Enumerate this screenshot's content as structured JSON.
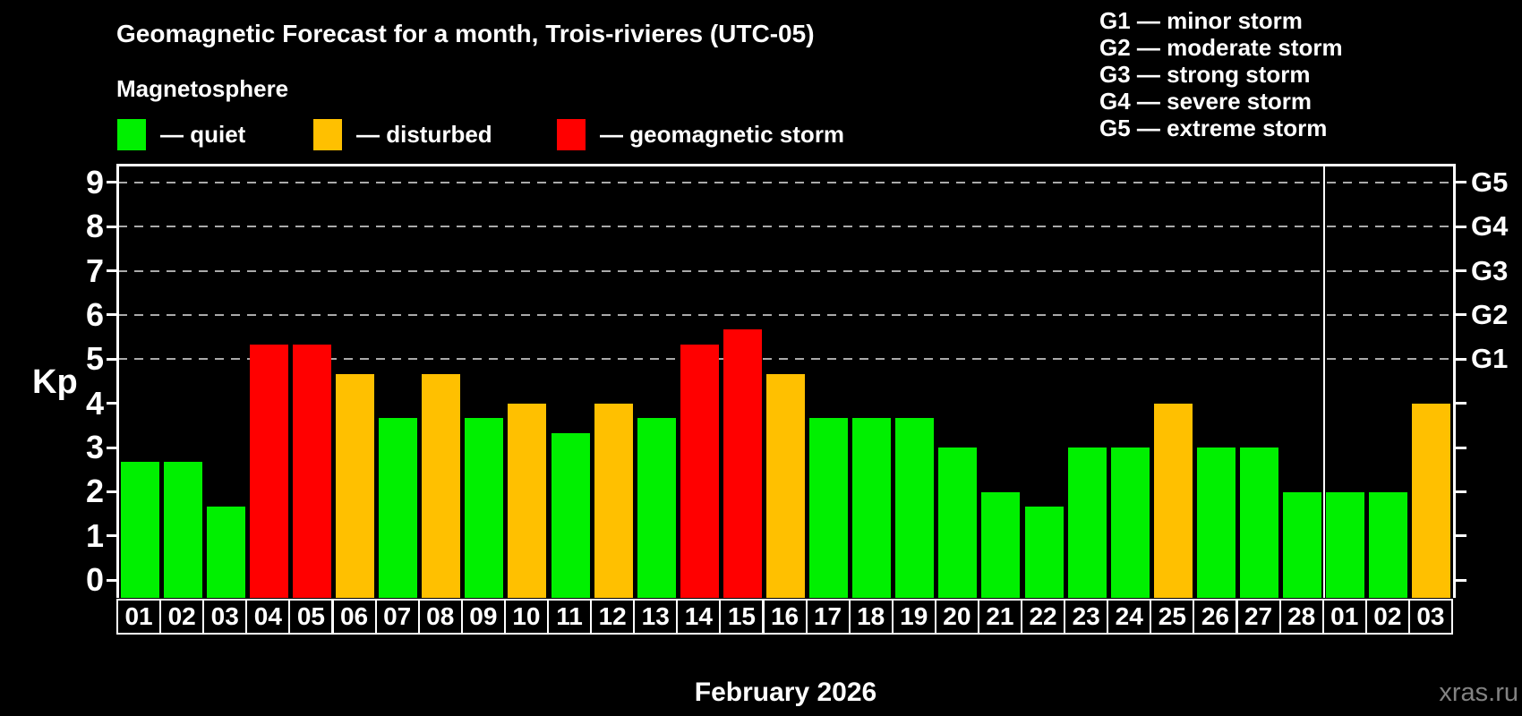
{
  "header": {
    "title": "Geomagnetic Forecast for a month, Trois-rivieres (UTC-05)",
    "subtitle": "Magnetosphere",
    "watermark": "xras.ru"
  },
  "legend": {
    "items": [
      {
        "id": "quiet",
        "label": "— quiet"
      },
      {
        "id": "disturbed",
        "label": "— disturbed"
      },
      {
        "id": "storm",
        "label": "— geomagnetic storm"
      }
    ],
    "colors": {
      "quiet": "#00f000",
      "disturbed": "#ffc000",
      "storm": "#ff0000"
    }
  },
  "g_scale": [
    {
      "code": "G1",
      "kp": 5,
      "text": "G1 — minor storm"
    },
    {
      "code": "G2",
      "kp": 6,
      "text": "G2 — moderate storm"
    },
    {
      "code": "G3",
      "kp": 7,
      "text": "G3 — strong storm"
    },
    {
      "code": "G4",
      "kp": 8,
      "text": "G4 — severe storm"
    },
    {
      "code": "G5",
      "kp": 9,
      "text": "G5 — extreme storm"
    }
  ],
  "chart_data": {
    "type": "bar",
    "title": "Geomagnetic Forecast for a month, Trois-rivieres (UTC-05)",
    "xlabel": "February 2026",
    "ylabel": "Kp",
    "ylim": [
      -0.4,
      9.4
    ],
    "yticks": [
      0,
      1,
      2,
      3,
      4,
      5,
      6,
      7,
      8,
      9
    ],
    "grid_kp": [
      5,
      6,
      7,
      8,
      9
    ],
    "legend_position": "top",
    "grid": "dashed horizontal at storm levels only",
    "month_separator_after": 28,
    "categories": [
      "01",
      "02",
      "03",
      "04",
      "05",
      "06",
      "07",
      "08",
      "09",
      "10",
      "11",
      "12",
      "13",
      "14",
      "15",
      "16",
      "17",
      "18",
      "19",
      "20",
      "21",
      "22",
      "23",
      "24",
      "25",
      "26",
      "27",
      "28",
      "01",
      "02",
      "03"
    ],
    "values": [
      2.67,
      2.67,
      1.67,
      5.33,
      5.33,
      4.67,
      3.67,
      4.67,
      3.67,
      4.0,
      3.33,
      4.0,
      3.67,
      5.33,
      5.67,
      4.67,
      3.67,
      3.67,
      3.67,
      3.0,
      2.0,
      1.67,
      3.0,
      3.0,
      4.0,
      3.0,
      3.0,
      2.0,
      2.0,
      2.0,
      4.0
    ],
    "status": [
      "quiet",
      "quiet",
      "quiet",
      "storm",
      "storm",
      "disturbed",
      "quiet",
      "disturbed",
      "quiet",
      "disturbed",
      "quiet",
      "disturbed",
      "quiet",
      "storm",
      "storm",
      "disturbed",
      "quiet",
      "quiet",
      "quiet",
      "quiet",
      "quiet",
      "quiet",
      "quiet",
      "quiet",
      "disturbed",
      "quiet",
      "quiet",
      "quiet",
      "quiet",
      "quiet",
      "disturbed"
    ]
  }
}
